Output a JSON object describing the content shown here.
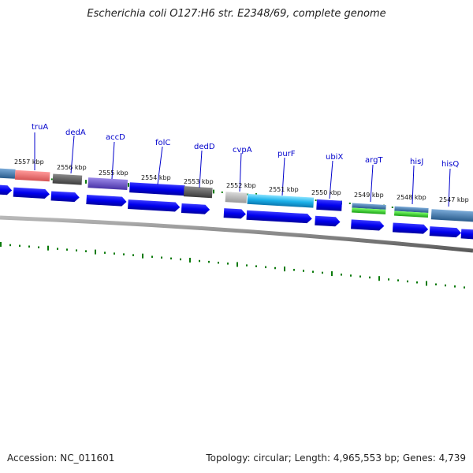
{
  "title": "Escherichia coli O127:H6 str. E2348/69, complete genome",
  "footer": {
    "accession": "Accession: NC_011601",
    "topology": "Topology: circular; Length: 4,965,553 bp; Genes: 4,739"
  },
  "colors": {
    "gene_label": "#0000cc",
    "tick": "#0a7a0a",
    "backbone": "#7a7a7a"
  },
  "gene_labels": [
    "truA",
    "dedA",
    "accD",
    "folC",
    "dedD",
    "cvpA",
    "purF",
    "ubiX",
    "argT",
    "hisJ",
    "hisQ"
  ],
  "position_labels": [
    "2557 kbp",
    "2556 kbp",
    "2555 kbp",
    "2554 kbp",
    "2553 kbp",
    "2552 kbp",
    "2551 kbp",
    "2550 kbp",
    "2549 kbp",
    "2548 kbp",
    "2547 kbp"
  ]
}
